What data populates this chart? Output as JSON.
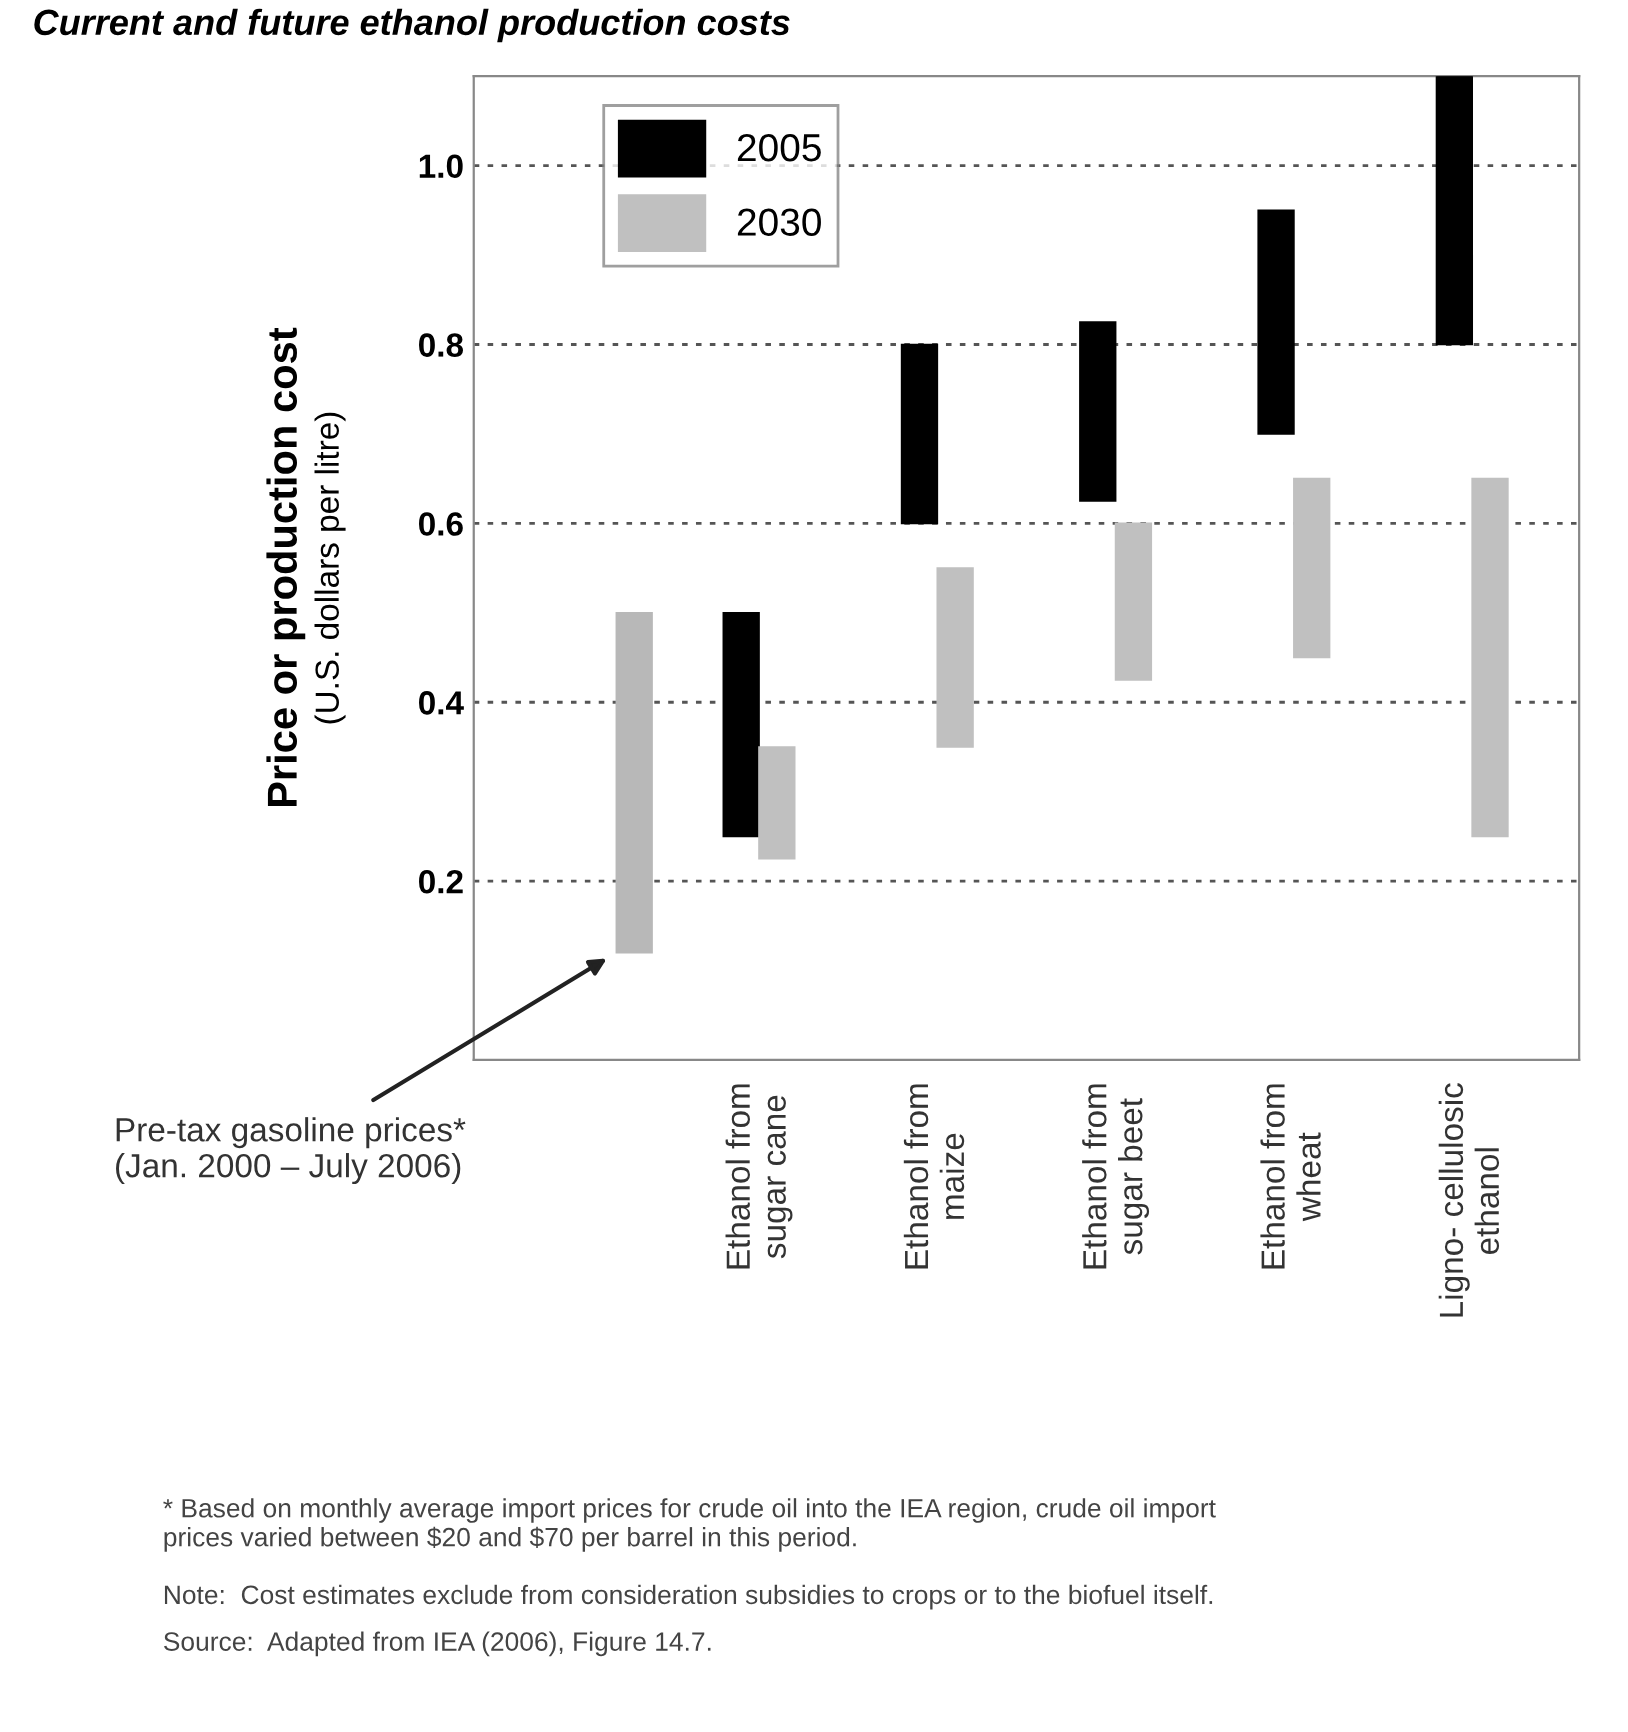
{
  "chart_data": {
    "type": "bar",
    "title": "Current and future ethanol production costs",
    "ylabel": "Price or production cost\n(U.S. dollars per litre)",
    "categories": [
      null,
      "Ethanol from\nsugar cane",
      "Ethanol from\nmaize",
      "Ethanol from\nsugar beet",
      "Ethanol from\nwheat",
      "Ligno- cellulosic\nethanol"
    ],
    "series": [
      {
        "color": "#b8b8b8",
        "values": [
          0.38,
          null,
          null,
          null,
          null,
          null
        ],
        "base": [
          0.12,
          null,
          null,
          null,
          null,
          null
        ]
      },
      {
        "name": "2005",
        "color": "#000000",
        "values": [
          null,
          0.25,
          0.2,
          0.2,
          0.25,
          0.3
        ],
        "base": [
          null,
          0.25,
          0.6,
          0.625,
          0.7,
          0.8
        ]
      },
      {
        "name": "2030",
        "color": "#c0c0c0",
        "values": [
          null,
          0.125,
          0.2,
          0.175,
          0.2,
          0.4
        ],
        "base": [
          null,
          0.225,
          0.35,
          0.425,
          0.45,
          0.25
        ]
      }
    ],
    "ylim": [
      0,
      1.1
    ],
    "yticks": [
      0.2,
      0.4,
      0.6,
      0.8,
      {
        "value": 1.0,
        "label": "1.0"
      }
    ],
    "grid": "y",
    "legend": "top left",
    "annotations": [
      "Pre-tax gasoline prices*\n(Jan. 2000 – July 2006)",
      "* Based on monthly average import prices for crude oil into the IEA region, crude oil import\nprices varied between $20 and $70 per barrel in this period.",
      "Note:  Cost estimates exclude from consideration subsidies to crops or to the biofuel itself.",
      "Source:  Adapted from IEA (2006), Figure 14.7."
    ]
  }
}
